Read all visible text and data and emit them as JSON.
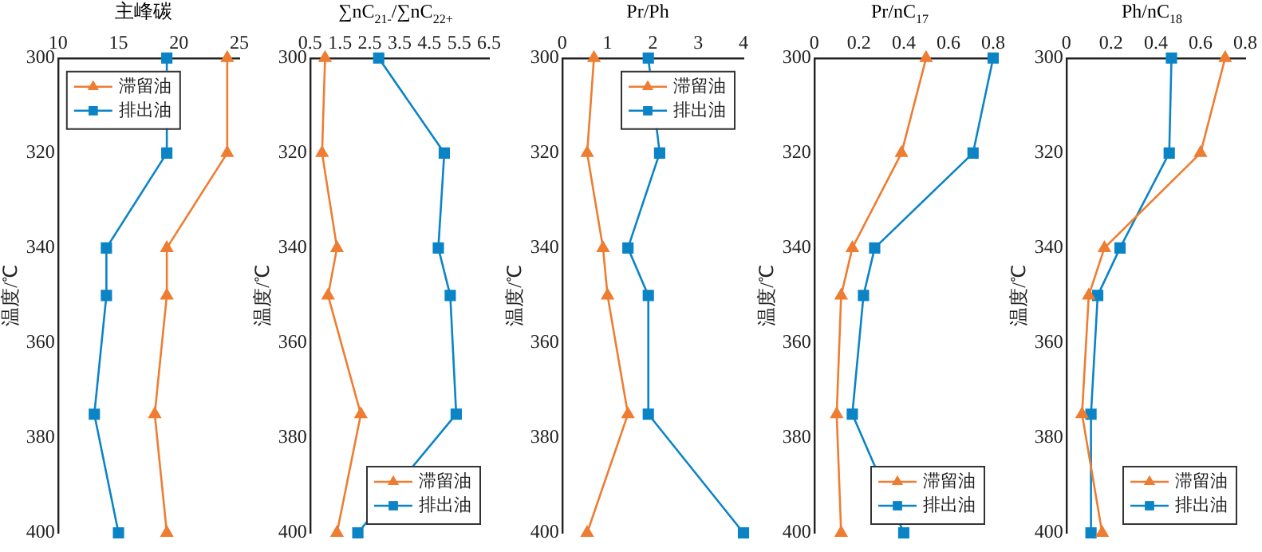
{
  "chart_data": [
    {
      "type": "line",
      "orientation": "horizontal",
      "xlabel": "主峰碳",
      "ylabel": "温度/℃",
      "x": [
        300,
        320,
        340,
        350,
        375,
        400
      ],
      "xlim": [
        10,
        25
      ],
      "xticks": [
        10,
        15,
        20,
        25
      ],
      "ylim": [
        400,
        300
      ],
      "yticks": [
        300,
        320,
        340,
        360,
        380,
        400
      ],
      "grid": false,
      "legend": "top left",
      "line_style": "solid",
      "series": [
        {
          "name": "滞留油",
          "color": "#ee7d31",
          "marker": "triangle",
          "values": [
            24,
            24,
            19,
            19,
            18,
            19
          ]
        },
        {
          "name": "排出油",
          "color": "#0b84c6",
          "marker": "square",
          "values": [
            19,
            19,
            14,
            14,
            13,
            15
          ]
        }
      ]
    },
    {
      "type": "line",
      "orientation": "horizontal",
      "xlabel": "∑nC$_{21-}$/∑nC$_{22+}$",
      "ylabel": "温度/℃",
      "x": [
        300,
        320,
        340,
        350,
        375,
        400
      ],
      "xlim": [
        0.5,
        6.5
      ],
      "xticks": [
        0.5,
        1.5,
        2.5,
        3.5,
        4.5,
        5.5,
        6.5
      ],
      "ylim": [
        400,
        300
      ],
      "yticks": [
        300,
        320,
        340,
        360,
        380,
        400
      ],
      "grid": false,
      "legend": "bottom right",
      "line_style": "solid",
      "series": [
        {
          "name": "滞留油",
          "color": "#ee7d31",
          "marker": "triangle",
          "values": [
            1.0,
            0.9,
            1.4,
            1.1,
            2.2,
            1.4
          ]
        },
        {
          "name": "排出油",
          "color": "#0b84c6",
          "marker": "square",
          "values": [
            2.8,
            5.0,
            4.8,
            5.2,
            5.4,
            2.1
          ]
        }
      ]
    },
    {
      "type": "line",
      "orientation": "horizontal",
      "xlabel": "Pr/Ph",
      "ylabel": "温度/℃",
      "x": [
        300,
        320,
        340,
        350,
        375,
        400
      ],
      "xlim": [
        0,
        4
      ],
      "xticks": [
        0,
        1,
        2,
        3,
        4
      ],
      "ylim": [
        400,
        300
      ],
      "yticks": [
        300,
        320,
        340,
        360,
        380,
        400
      ],
      "grid": false,
      "legend": "top right",
      "line_style": "solid",
      "series": [
        {
          "name": "滞留油",
          "color": "#ee7d31",
          "marker": "triangle",
          "values": [
            0.7,
            0.55,
            0.9,
            1.0,
            1.45,
            0.55
          ]
        },
        {
          "name": "排出油",
          "color": "#0b84c6",
          "marker": "square",
          "values": [
            1.9,
            2.15,
            1.45,
            1.9,
            1.9,
            4
          ]
        }
      ]
    },
    {
      "type": "line",
      "orientation": "horizontal",
      "xlabel": "Pr/nC$_{17}$",
      "ylabel": "温度/℃",
      "x": [
        300,
        320,
        340,
        350,
        375,
        400
      ],
      "xlim": [
        0,
        0.8
      ],
      "xticks": [
        0,
        0.2,
        0.4,
        0.6,
        0.8
      ],
      "ylim": [
        400,
        300
      ],
      "yticks": [
        300,
        320,
        340,
        360,
        380,
        400
      ],
      "grid": false,
      "legend": "bottom right",
      "line_style": "solid",
      "series": [
        {
          "name": "滞留油",
          "color": "#ee7d31",
          "marker": "triangle",
          "values": [
            0.5,
            0.39,
            0.17,
            0.12,
            0.1,
            0.12
          ]
        },
        {
          "name": "排出油",
          "color": "#0b84c6",
          "marker": "square",
          "values": [
            0.8,
            0.71,
            0.27,
            0.22,
            0.17,
            0.4
          ]
        }
      ]
    },
    {
      "type": "line",
      "orientation": "horizontal",
      "xlabel": "Ph/nC$_{18}$",
      "ylabel": "温度/℃",
      "x": [
        300,
        320,
        340,
        350,
        375,
        400
      ],
      "xlim": [
        0,
        0.8
      ],
      "xticks": [
        0,
        0.2,
        0.4,
        0.6,
        0.8
      ],
      "ylim": [
        400,
        300
      ],
      "yticks": [
        300,
        320,
        340,
        360,
        380,
        400
      ],
      "grid": false,
      "legend": "bottom right",
      "line_style": "solid",
      "series": [
        {
          "name": "滞留油",
          "color": "#ee7d31",
          "marker": "triangle",
          "values": [
            0.71,
            0.6,
            0.17,
            0.1,
            0.07,
            0.16
          ]
        },
        {
          "name": "排出油",
          "color": "#0b84c6",
          "marker": "square",
          "values": [
            0.47,
            0.46,
            0.24,
            0.14,
            0.11,
            0.11
          ]
        }
      ]
    }
  ]
}
